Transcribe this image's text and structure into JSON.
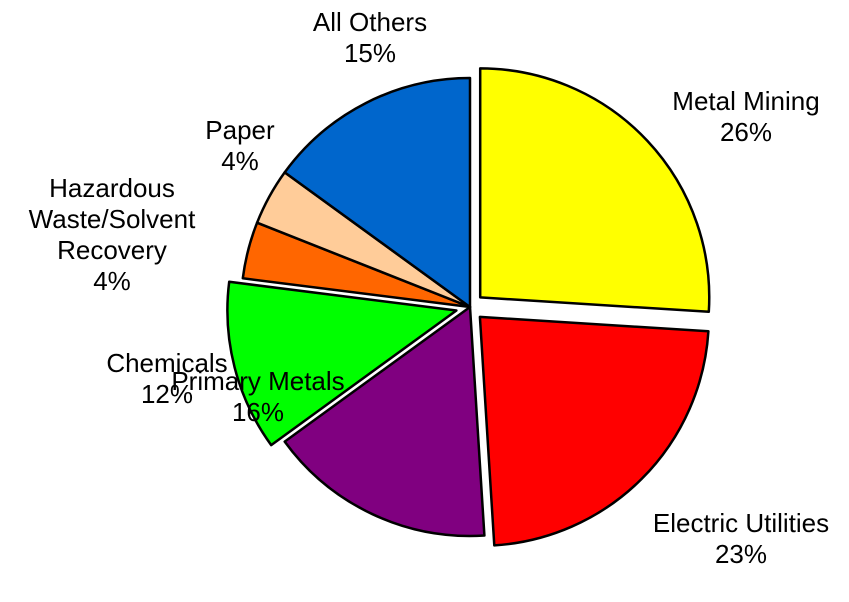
{
  "chart_data": {
    "type": "pie",
    "title": "",
    "unit": "%",
    "start_angle_deg": 0,
    "direction": "clockwise",
    "slices": [
      {
        "label_lines": [
          "Metal Mining"
        ],
        "value": 26,
        "value_label": "26%",
        "color": "#FFFF00",
        "exploded": true
      },
      {
        "label_lines": [
          "Electric Utilities"
        ],
        "value": 23,
        "value_label": "23%",
        "color": "#FF0000",
        "exploded": true
      },
      {
        "label_lines": [
          "Primary Metals"
        ],
        "value": 16,
        "value_label": "16%",
        "color": "#800080",
        "exploded": false
      },
      {
        "label_lines": [
          "Chemicals"
        ],
        "value": 12,
        "value_label": "12%",
        "color": "#00FF00",
        "exploded": true
      },
      {
        "label_lines": [
          "Hazardous",
          "Waste/Solvent",
          "Recovery"
        ],
        "value": 4,
        "value_label": "4%",
        "color": "#FF6600",
        "exploded": false
      },
      {
        "label_lines": [
          "Paper"
        ],
        "value": 4,
        "value_label": "4%",
        "color": "#FFCC99",
        "exploded": false
      },
      {
        "label_lines": [
          "All Others"
        ],
        "value": 15,
        "value_label": "15%",
        "color": "#0066CC",
        "exploded": false
      }
    ],
    "legend": "none",
    "labels": "outside"
  }
}
